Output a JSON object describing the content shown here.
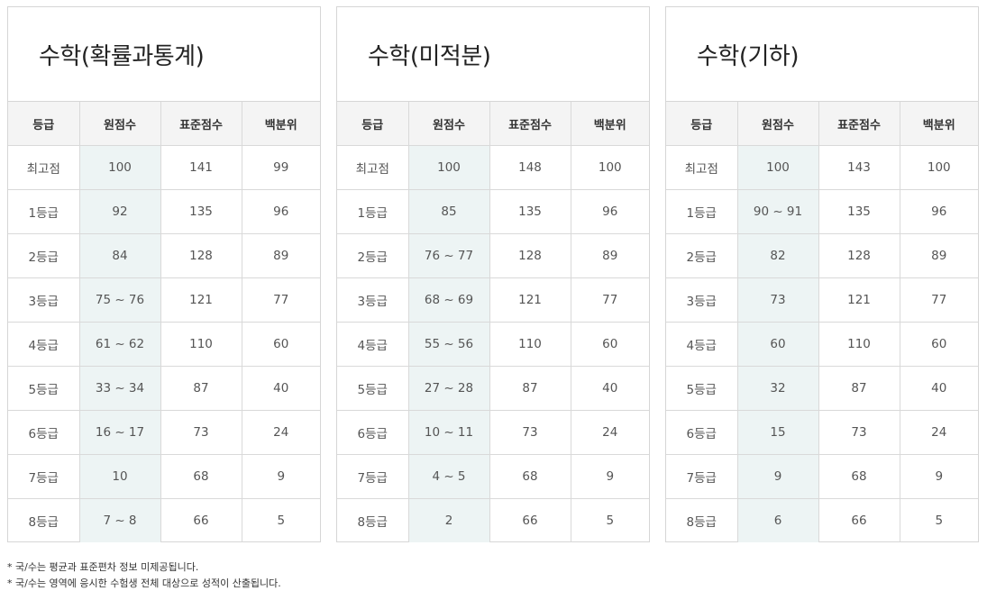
{
  "headers": [
    "등급",
    "원점수",
    "표준점수",
    "백분위"
  ],
  "panels": [
    {
      "title": "수학(확률과통계)",
      "rows": [
        [
          "최고점",
          "100",
          "141",
          "99"
        ],
        [
          "1등급",
          "92",
          "135",
          "96"
        ],
        [
          "2등급",
          "84",
          "128",
          "89"
        ],
        [
          "3등급",
          "75 ~ 76",
          "121",
          "77"
        ],
        [
          "4등급",
          "61 ~ 62",
          "110",
          "60"
        ],
        [
          "5등급",
          "33 ~ 34",
          "87",
          "40"
        ],
        [
          "6등급",
          "16 ~ 17",
          "73",
          "24"
        ],
        [
          "7등급",
          "10",
          "68",
          "9"
        ],
        [
          "8등급",
          "7 ~ 8",
          "66",
          "5"
        ]
      ]
    },
    {
      "title": "수학(미적분)",
      "rows": [
        [
          "최고점",
          "100",
          "148",
          "100"
        ],
        [
          "1등급",
          "85",
          "135",
          "96"
        ],
        [
          "2등급",
          "76 ~ 77",
          "128",
          "89"
        ],
        [
          "3등급",
          "68 ~ 69",
          "121",
          "77"
        ],
        [
          "4등급",
          "55 ~ 56",
          "110",
          "60"
        ],
        [
          "5등급",
          "27 ~ 28",
          "87",
          "40"
        ],
        [
          "6등급",
          "10 ~ 11",
          "73",
          "24"
        ],
        [
          "7등급",
          "4 ~ 5",
          "68",
          "9"
        ],
        [
          "8등급",
          "2",
          "66",
          "5"
        ]
      ]
    },
    {
      "title": "수학(기하)",
      "rows": [
        [
          "최고점",
          "100",
          "143",
          "100"
        ],
        [
          "1등급",
          "90 ~ 91",
          "135",
          "96"
        ],
        [
          "2등급",
          "82",
          "128",
          "89"
        ],
        [
          "3등급",
          "73",
          "121",
          "77"
        ],
        [
          "4등급",
          "60",
          "110",
          "60"
        ],
        [
          "5등급",
          "32",
          "87",
          "40"
        ],
        [
          "6등급",
          "15",
          "73",
          "24"
        ],
        [
          "7등급",
          "9",
          "68",
          "9"
        ],
        [
          "8등급",
          "6",
          "66",
          "5"
        ]
      ]
    }
  ],
  "notes": [
    "* 국/수는 평균과 표준편차 정보 미제공됩니다.",
    "* 국/수는 영역에 응시한 수험생 전체 대상으로 성적이 산출됩니다."
  ]
}
